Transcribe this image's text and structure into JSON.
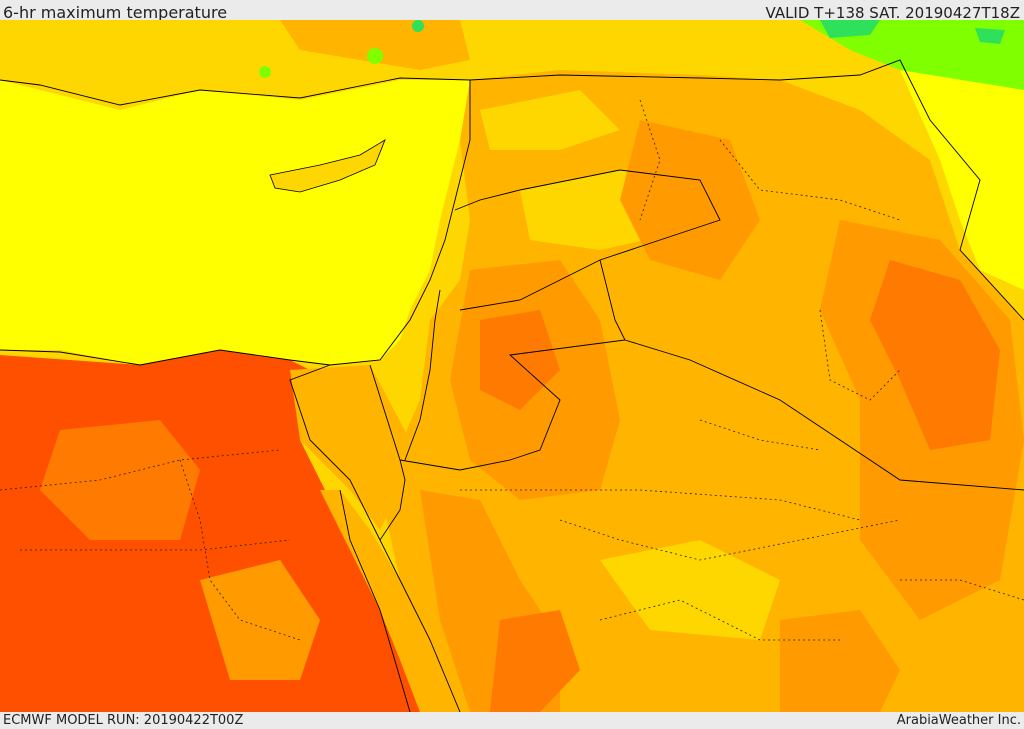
{
  "header": {
    "title": "6-hr maximum temperature",
    "valid": "VALID T+138 SAT. 20190427T18Z"
  },
  "footer": {
    "model_run": "ECMWF MODEL RUN: 20190422T00Z",
    "credit": "ArabiaWeather Inc."
  },
  "colors": {
    "sea_yellow": "#ffff00",
    "yellow_orange": "#ffd700",
    "light_orange": "#ffb400",
    "orange": "#ff9a00",
    "dark_orange": "#ff7a00",
    "red_orange": "#ff5000",
    "green": "#7fff00",
    "bright_green": "#2ee05a"
  }
}
